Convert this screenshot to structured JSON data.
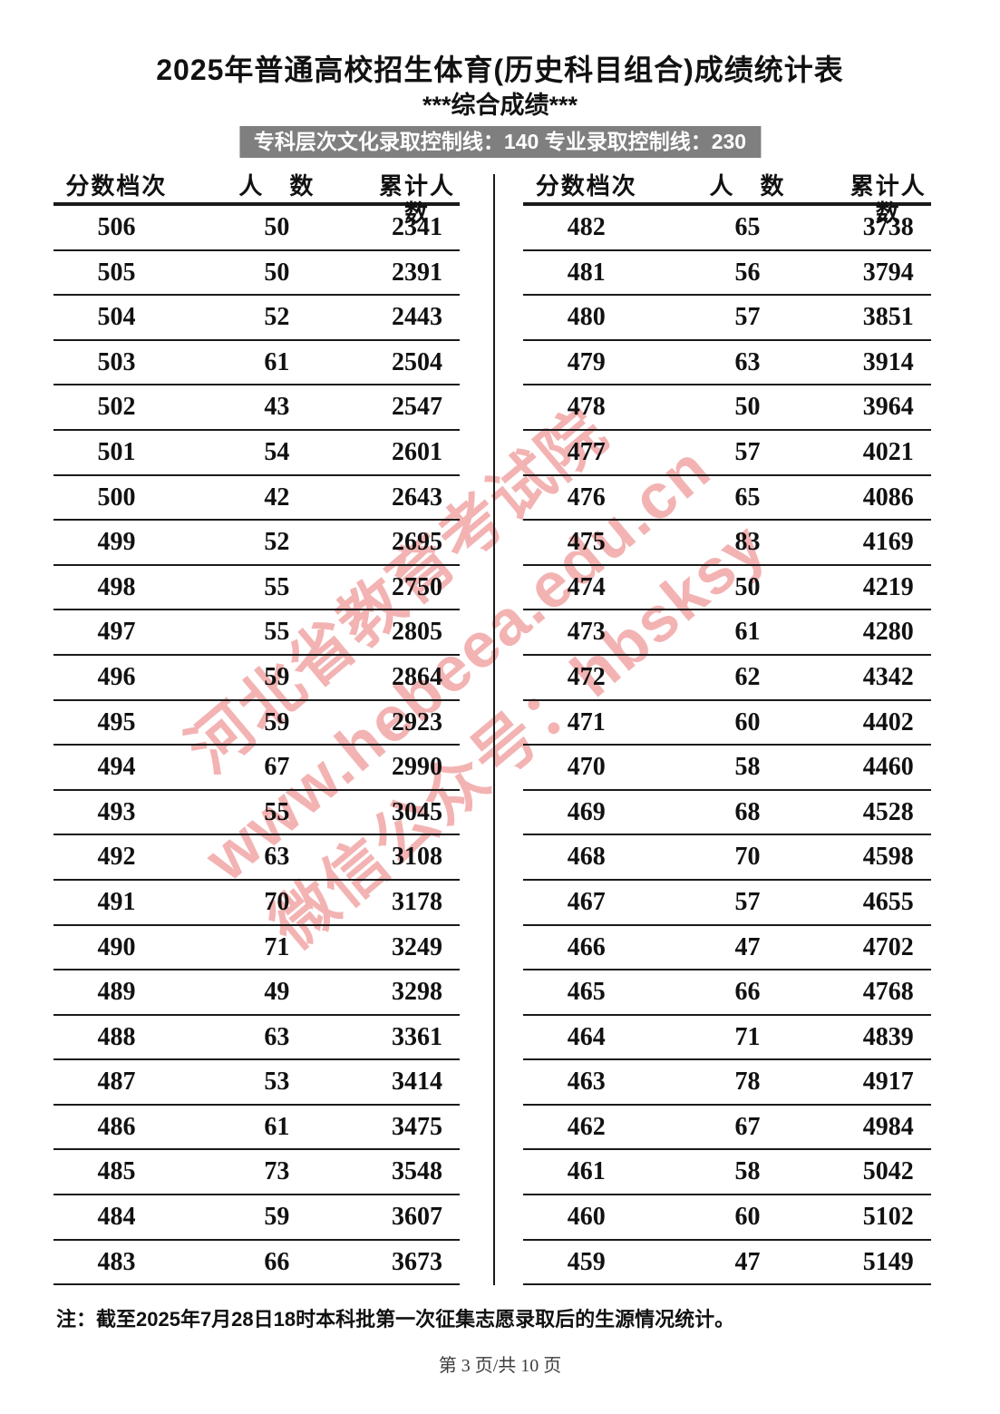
{
  "page": {
    "title": "2025年普通高校招生体育(历史科目组合)成绩统计表",
    "subtitle": "***综合成绩***",
    "control_line": "专科层次文化录取控制线：140 专业录取控制线：230",
    "note": "注：截至2025年7月28日18时本科批第一次征集志愿录取后的生源情况统计。",
    "page_footer": "第 3 页/共 10 页"
  },
  "watermark": {
    "color": "#e86a6a",
    "lines": [
      "河北省教育考试院",
      "www.hebeea.edu.cn",
      "微信公众号：hbsksy"
    ]
  },
  "colors": {
    "control_bar_bg": "#7f7f7f",
    "control_bar_text": "#ffffff",
    "rule_lines": "#1a1a1a"
  },
  "table": {
    "headers": [
      "分数档次",
      "人　数",
      "累计人数"
    ],
    "left_rows": [
      [
        "506",
        "50",
        "2341"
      ],
      [
        "505",
        "50",
        "2391"
      ],
      [
        "504",
        "52",
        "2443"
      ],
      [
        "503",
        "61",
        "2504"
      ],
      [
        "502",
        "43",
        "2547"
      ],
      [
        "501",
        "54",
        "2601"
      ],
      [
        "500",
        "42",
        "2643"
      ],
      [
        "499",
        "52",
        "2695"
      ],
      [
        "498",
        "55",
        "2750"
      ],
      [
        "497",
        "55",
        "2805"
      ],
      [
        "496",
        "59",
        "2864"
      ],
      [
        "495",
        "59",
        "2923"
      ],
      [
        "494",
        "67",
        "2990"
      ],
      [
        "493",
        "55",
        "3045"
      ],
      [
        "492",
        "63",
        "3108"
      ],
      [
        "491",
        "70",
        "3178"
      ],
      [
        "490",
        "71",
        "3249"
      ],
      [
        "489",
        "49",
        "3298"
      ],
      [
        "488",
        "63",
        "3361"
      ],
      [
        "487",
        "53",
        "3414"
      ],
      [
        "486",
        "61",
        "3475"
      ],
      [
        "485",
        "73",
        "3548"
      ],
      [
        "484",
        "59",
        "3607"
      ],
      [
        "483",
        "66",
        "3673"
      ]
    ],
    "right_rows": [
      [
        "482",
        "65",
        "3738"
      ],
      [
        "481",
        "56",
        "3794"
      ],
      [
        "480",
        "57",
        "3851"
      ],
      [
        "479",
        "63",
        "3914"
      ],
      [
        "478",
        "50",
        "3964"
      ],
      [
        "477",
        "57",
        "4021"
      ],
      [
        "476",
        "65",
        "4086"
      ],
      [
        "475",
        "83",
        "4169"
      ],
      [
        "474",
        "50",
        "4219"
      ],
      [
        "473",
        "61",
        "4280"
      ],
      [
        "472",
        "62",
        "4342"
      ],
      [
        "471",
        "60",
        "4402"
      ],
      [
        "470",
        "58",
        "4460"
      ],
      [
        "469",
        "68",
        "4528"
      ],
      [
        "468",
        "70",
        "4598"
      ],
      [
        "467",
        "57",
        "4655"
      ],
      [
        "466",
        "47",
        "4702"
      ],
      [
        "465",
        "66",
        "4768"
      ],
      [
        "464",
        "71",
        "4839"
      ],
      [
        "463",
        "78",
        "4917"
      ],
      [
        "462",
        "67",
        "4984"
      ],
      [
        "461",
        "58",
        "5042"
      ],
      [
        "460",
        "60",
        "5102"
      ],
      [
        "459",
        "47",
        "5149"
      ]
    ]
  }
}
